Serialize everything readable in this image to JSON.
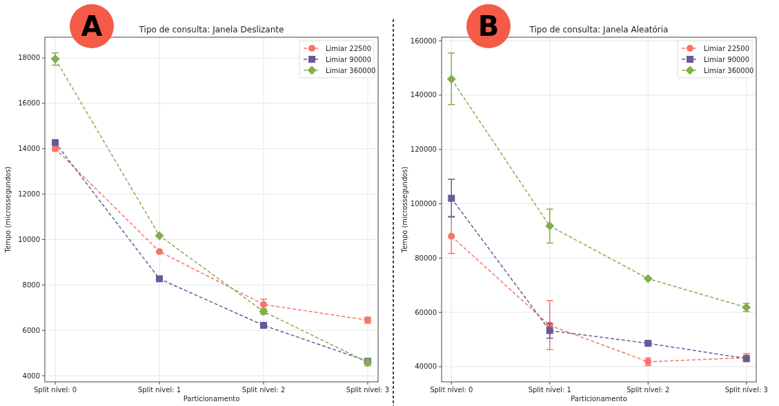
{
  "chart_data": [
    {
      "type": "line",
      "title": "Tipo de consulta: Janela Deslizante",
      "xlabel": "Particionamento",
      "ylabel": "Tempo (microssegundos)",
      "annotations": [
        "A"
      ],
      "categories": [
        "Split nível: 0",
        "Split nível: 1",
        "Split nível: 2",
        "Split nível: 3"
      ],
      "ylim": [
        3730,
        18910
      ],
      "yticks": [
        4000,
        6000,
        8000,
        10000,
        12000,
        14000,
        16000,
        18000
      ],
      "grid": true,
      "legend": "top right",
      "line_style": "dashed",
      "series": [
        {
          "name": "Limiar 22500",
          "color": "#fa7268",
          "marker": "circle",
          "values": [
            14000,
            9470,
            7140,
            6450
          ],
          "errors": [
            100,
            null,
            230,
            130
          ]
        },
        {
          "name": "Limiar 90000",
          "color": "#675a9a",
          "marker": "square",
          "values": [
            14270,
            8270,
            6220,
            4640
          ],
          "errors": [
            null,
            null,
            null,
            null
          ]
        },
        {
          "name": "Limiar 360000",
          "color": "#84ad4c",
          "marker": "diamond",
          "values": [
            17950,
            10170,
            6830,
            4590
          ],
          "errors": [
            270,
            null,
            120,
            150
          ]
        }
      ]
    },
    {
      "type": "line",
      "title": "Tipo de consulta: Janela Aleatória",
      "xlabel": "Particionamento",
      "ylabel": "Tempo (microssegundos)",
      "annotations": [
        "B"
      ],
      "categories": [
        "Split nível: 0",
        "Split nível: 1",
        "Split nível: 2",
        "Split nível: 3"
      ],
      "ylim": [
        34400,
        161300
      ],
      "yticks": [
        40000,
        60000,
        80000,
        100000,
        120000,
        140000,
        160000
      ],
      "grid": true,
      "legend": "top right",
      "line_style": "dashed",
      "series": [
        {
          "name": "Limiar 22500",
          "color": "#fa7268",
          "marker": "circle",
          "values": [
            88000,
            55200,
            41800,
            43300
          ],
          "errors": [
            [
              81700,
              95000
            ],
            [
              46300,
              64300
            ],
            1400,
            1500
          ]
        },
        {
          "name": "Limiar 90000",
          "color": "#675a9a",
          "marker": "square",
          "values": [
            102000,
            53300,
            48600,
            43000
          ],
          "errors": [
            [
              95300,
              109000
            ],
            [
              50500,
              56000
            ],
            null,
            null
          ]
        },
        {
          "name": "Limiar 360000",
          "color": "#84ad4c",
          "marker": "diamond",
          "values": [
            145900,
            91800,
            72400,
            61800
          ],
          "errors": [
            [
              136500,
              155500
            ],
            [
              85500,
              98000
            ],
            null,
            1500
          ]
        }
      ]
    }
  ]
}
